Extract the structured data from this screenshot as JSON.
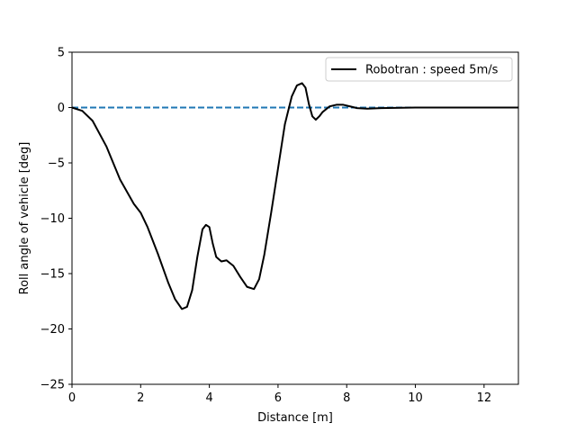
{
  "chart_data": {
    "type": "line",
    "xlabel": "Distance [m]",
    "ylabel": "Roll angle of vehicle [deg]",
    "xlim": [
      0,
      13
    ],
    "ylim": [
      -25,
      5
    ],
    "xticks": [
      0,
      2,
      4,
      6,
      8,
      10,
      12
    ],
    "yticks": [
      5,
      0,
      -5,
      -10,
      -15,
      -20,
      -25
    ],
    "xtick_labels": [
      "0",
      "2",
      "4",
      "6",
      "8",
      "10",
      "12"
    ],
    "ytick_labels": [
      "5",
      "0",
      "−5",
      "−10",
      "−15",
      "−20",
      "−25"
    ],
    "grid": false,
    "legend_position": "top-right",
    "series": [
      {
        "name": "Robotran : speed 5m/s",
        "color": "#000000",
        "style": "solid",
        "x": [
          0,
          0.3,
          0.6,
          1.0,
          1.4,
          1.8,
          2.0,
          2.2,
          2.5,
          2.8,
          3.0,
          3.2,
          3.35,
          3.5,
          3.65,
          3.8,
          3.9,
          4.0,
          4.1,
          4.2,
          4.35,
          4.5,
          4.7,
          4.9,
          5.1,
          5.3,
          5.45,
          5.6,
          5.8,
          6.0,
          6.2,
          6.4,
          6.55,
          6.7,
          6.8,
          6.9,
          7.0,
          7.1,
          7.2,
          7.3,
          7.5,
          7.7,
          7.9,
          8.1,
          8.3,
          8.6,
          9.0,
          10.0,
          11.0,
          12.0,
          13.0
        ],
        "y": [
          0,
          -0.3,
          -1.2,
          -3.5,
          -6.5,
          -8.7,
          -9.5,
          -10.8,
          -13.2,
          -15.8,
          -17.3,
          -18.2,
          -18.0,
          -16.5,
          -13.5,
          -11.0,
          -10.6,
          -10.8,
          -12.3,
          -13.5,
          -13.9,
          -13.8,
          -14.3,
          -15.3,
          -16.2,
          -16.4,
          -15.5,
          -13.3,
          -9.5,
          -5.5,
          -1.5,
          1.0,
          2.0,
          2.2,
          1.8,
          0.3,
          -0.8,
          -1.1,
          -0.8,
          -0.4,
          0.1,
          0.25,
          0.25,
          0.1,
          -0.05,
          -0.1,
          -0.05,
          0,
          0,
          0,
          0
        ]
      },
      {
        "color": "#1f77b4",
        "style": "dashed",
        "x": [
          0,
          13
        ],
        "y": [
          0,
          0
        ]
      }
    ]
  }
}
